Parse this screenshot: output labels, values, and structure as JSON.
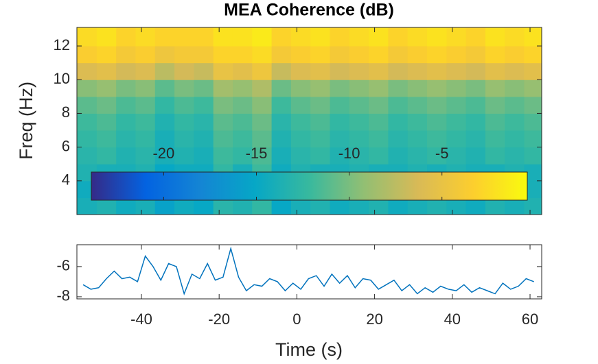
{
  "chart_data": [
    {
      "type": "heatmap",
      "title": "MEA Coherence (dB)",
      "ylabel": "Freq (Hz)",
      "xlim": [
        -56.6,
        63
      ],
      "ylim": [
        2,
        13.1
      ],
      "xticks": [
        -40,
        -20,
        0,
        20,
        40,
        60
      ],
      "yticks": [
        4,
        6,
        8,
        10,
        12
      ],
      "x": [
        -54,
        -49,
        -44,
        -39,
        -34,
        -29,
        -24,
        -19,
        -14,
        -9,
        -4,
        1,
        6,
        11,
        16,
        21,
        26,
        31,
        36,
        41,
        46,
        51,
        56,
        61
      ],
      "y": [
        2.5,
        3.5,
        4.5,
        5.5,
        6.5,
        7.5,
        8.5,
        9.5,
        10.5,
        11.5,
        12.5
      ],
      "z": [
        [
          -14,
          -13.5,
          -14.5,
          -14,
          -15.5,
          -14.5,
          -15,
          -13,
          -13.5,
          -12.5,
          -15,
          -14,
          -13.5,
          -14.5,
          -14,
          -13.5,
          -14.5,
          -14,
          -13.5,
          -14,
          -14.5,
          -13.5,
          -14,
          -13.5
        ],
        [
          -14.5,
          -14,
          -15,
          -14.5,
          -16,
          -15,
          -15.5,
          -13.5,
          -14,
          -13,
          -15.5,
          -14.5,
          -14,
          -15,
          -14.5,
          -14,
          -15,
          -14.5,
          -14,
          -14.5,
          -15,
          -14,
          -14.5,
          -14
        ],
        [
          -13.5,
          -14,
          -14,
          -13.5,
          -15,
          -14.5,
          -14.5,
          -12.5,
          -14,
          -12,
          -14.5,
          -13.5,
          -14,
          -14,
          -13.5,
          -14,
          -14,
          -13.5,
          -14,
          -13.5,
          -14,
          -14,
          -13.5,
          -14
        ],
        [
          -13,
          -12.5,
          -13.5,
          -13,
          -14,
          -13.5,
          -14,
          -12,
          -12.5,
          -11.5,
          -14,
          -13,
          -12.5,
          -13.5,
          -13,
          -12.5,
          -13.5,
          -13,
          -12.5,
          -13,
          -13.5,
          -12.5,
          -13,
          -12.5
        ],
        [
          -12.5,
          -12,
          -13,
          -12.5,
          -14,
          -13,
          -13.5,
          -11.5,
          -12,
          -11,
          -13.5,
          -12.5,
          -12,
          -13,
          -12.5,
          -12,
          -13,
          -12.5,
          -12,
          -12.5,
          -13,
          -12,
          -12.5,
          -12
        ],
        [
          -12,
          -11.5,
          -12.5,
          -12,
          -13.5,
          -12.5,
          -13,
          -11,
          -11.5,
          -10.5,
          -13,
          -12,
          -11.5,
          -12.5,
          -12,
          -11.5,
          -12.5,
          -12,
          -11.5,
          -12,
          -12.5,
          -11.5,
          -12,
          -11.5
        ],
        [
          -11,
          -10.5,
          -11.5,
          -11,
          -12.5,
          -11.5,
          -12,
          -10,
          -10.5,
          -9.5,
          -12,
          -11,
          -10.5,
          -11.5,
          -11,
          -10.5,
          -11.5,
          -11,
          -10.5,
          -11,
          -11.5,
          -10.5,
          -11,
          -10.5
        ],
        [
          -9.5,
          -9,
          -10,
          -9.5,
          -11,
          -10,
          -10.5,
          -8.5,
          -9,
          -8,
          -10.5,
          -9.5,
          -9,
          -10,
          -9.5,
          -9,
          -10,
          -9.5,
          -9,
          -9.5,
          -10,
          -9,
          -9.5,
          -9
        ],
        [
          -6,
          -5.5,
          -6.5,
          -6,
          -7.5,
          -6.5,
          -7,
          -5,
          -5.5,
          -4.5,
          -7,
          -6,
          -5.5,
          -6.5,
          -6,
          -5.5,
          -6.5,
          -6,
          -5.5,
          -6,
          -6.5,
          -5.5,
          -6,
          -5.5
        ],
        [
          -3.5,
          -3,
          -4,
          -3.5,
          -4.5,
          -4,
          -4,
          -3,
          -3,
          -2.5,
          -4,
          -3.5,
          -3,
          -4,
          -3.5,
          -3,
          -4,
          -3.5,
          -3,
          -3.5,
          -4,
          -3,
          -3.5,
          -3
        ],
        [
          -2.5,
          -2,
          -3,
          -2.5,
          -3,
          -3,
          -3,
          -2,
          -2,
          -1.5,
          -3,
          -2.5,
          -2,
          -3,
          -2.5,
          -2,
          -3,
          -2.5,
          -2,
          -2.5,
          -3,
          -2,
          -2.5,
          -2
        ]
      ],
      "clim": [
        -23.9,
        -0.4
      ],
      "colorbar_ticks": [
        -20,
        -15,
        -10,
        -5
      ],
      "colormap": [
        "#352a87",
        "#0363e1",
        "#1485d4",
        "#06a7c6",
        "#38b99e",
        "#92bf73",
        "#d9ba56",
        "#fcce2e",
        "#f9fb0e"
      ]
    },
    {
      "type": "line",
      "xlabel": "Time (s)",
      "xlim": [
        -56.6,
        63
      ],
      "ylim": [
        -8.14,
        -4.55
      ],
      "xticks": [
        -40,
        -20,
        0,
        20,
        40,
        60
      ],
      "yticks": [
        -8,
        -6
      ],
      "x": [
        -55,
        -53,
        -51,
        -49,
        -47,
        -45,
        -43,
        -41,
        -39,
        -37,
        -35,
        -33,
        -31,
        -29,
        -27,
        -25,
        -23,
        -21,
        -19,
        -17,
        -15,
        -13,
        -11,
        -9,
        -7,
        -5,
        -3,
        -1,
        1,
        3,
        5,
        7,
        9,
        11,
        13,
        15,
        17,
        19,
        21,
        23,
        25,
        27,
        29,
        31,
        33,
        35,
        37,
        39,
        41,
        43,
        45,
        47,
        49,
        51,
        53,
        55,
        57,
        59,
        61
      ],
      "series": [
        {
          "color": "#0072bd",
          "values": [
            -7.2,
            -7.5,
            -7.4,
            -6.8,
            -6.3,
            -6.8,
            -6.7,
            -7.0,
            -5.3,
            -6.0,
            -6.9,
            -5.8,
            -6.0,
            -7.8,
            -6.5,
            -6.8,
            -5.8,
            -6.9,
            -6.7,
            -4.8,
            -6.7,
            -7.6,
            -7.2,
            -7.3,
            -6.8,
            -7.0,
            -7.6,
            -7.1,
            -7.5,
            -6.8,
            -6.6,
            -7.3,
            -6.5,
            -7.1,
            -6.6,
            -7.4,
            -6.8,
            -6.9,
            -7.5,
            -7.2,
            -6.9,
            -7.6,
            -7.2,
            -7.8,
            -7.4,
            -7.7,
            -7.3,
            -7.5,
            -7.6,
            -7.2,
            -7.7,
            -7.4,
            -7.6,
            -7.8,
            -7.1,
            -7.5,
            -7.3,
            -6.8,
            -7.0
          ]
        }
      ]
    }
  ]
}
